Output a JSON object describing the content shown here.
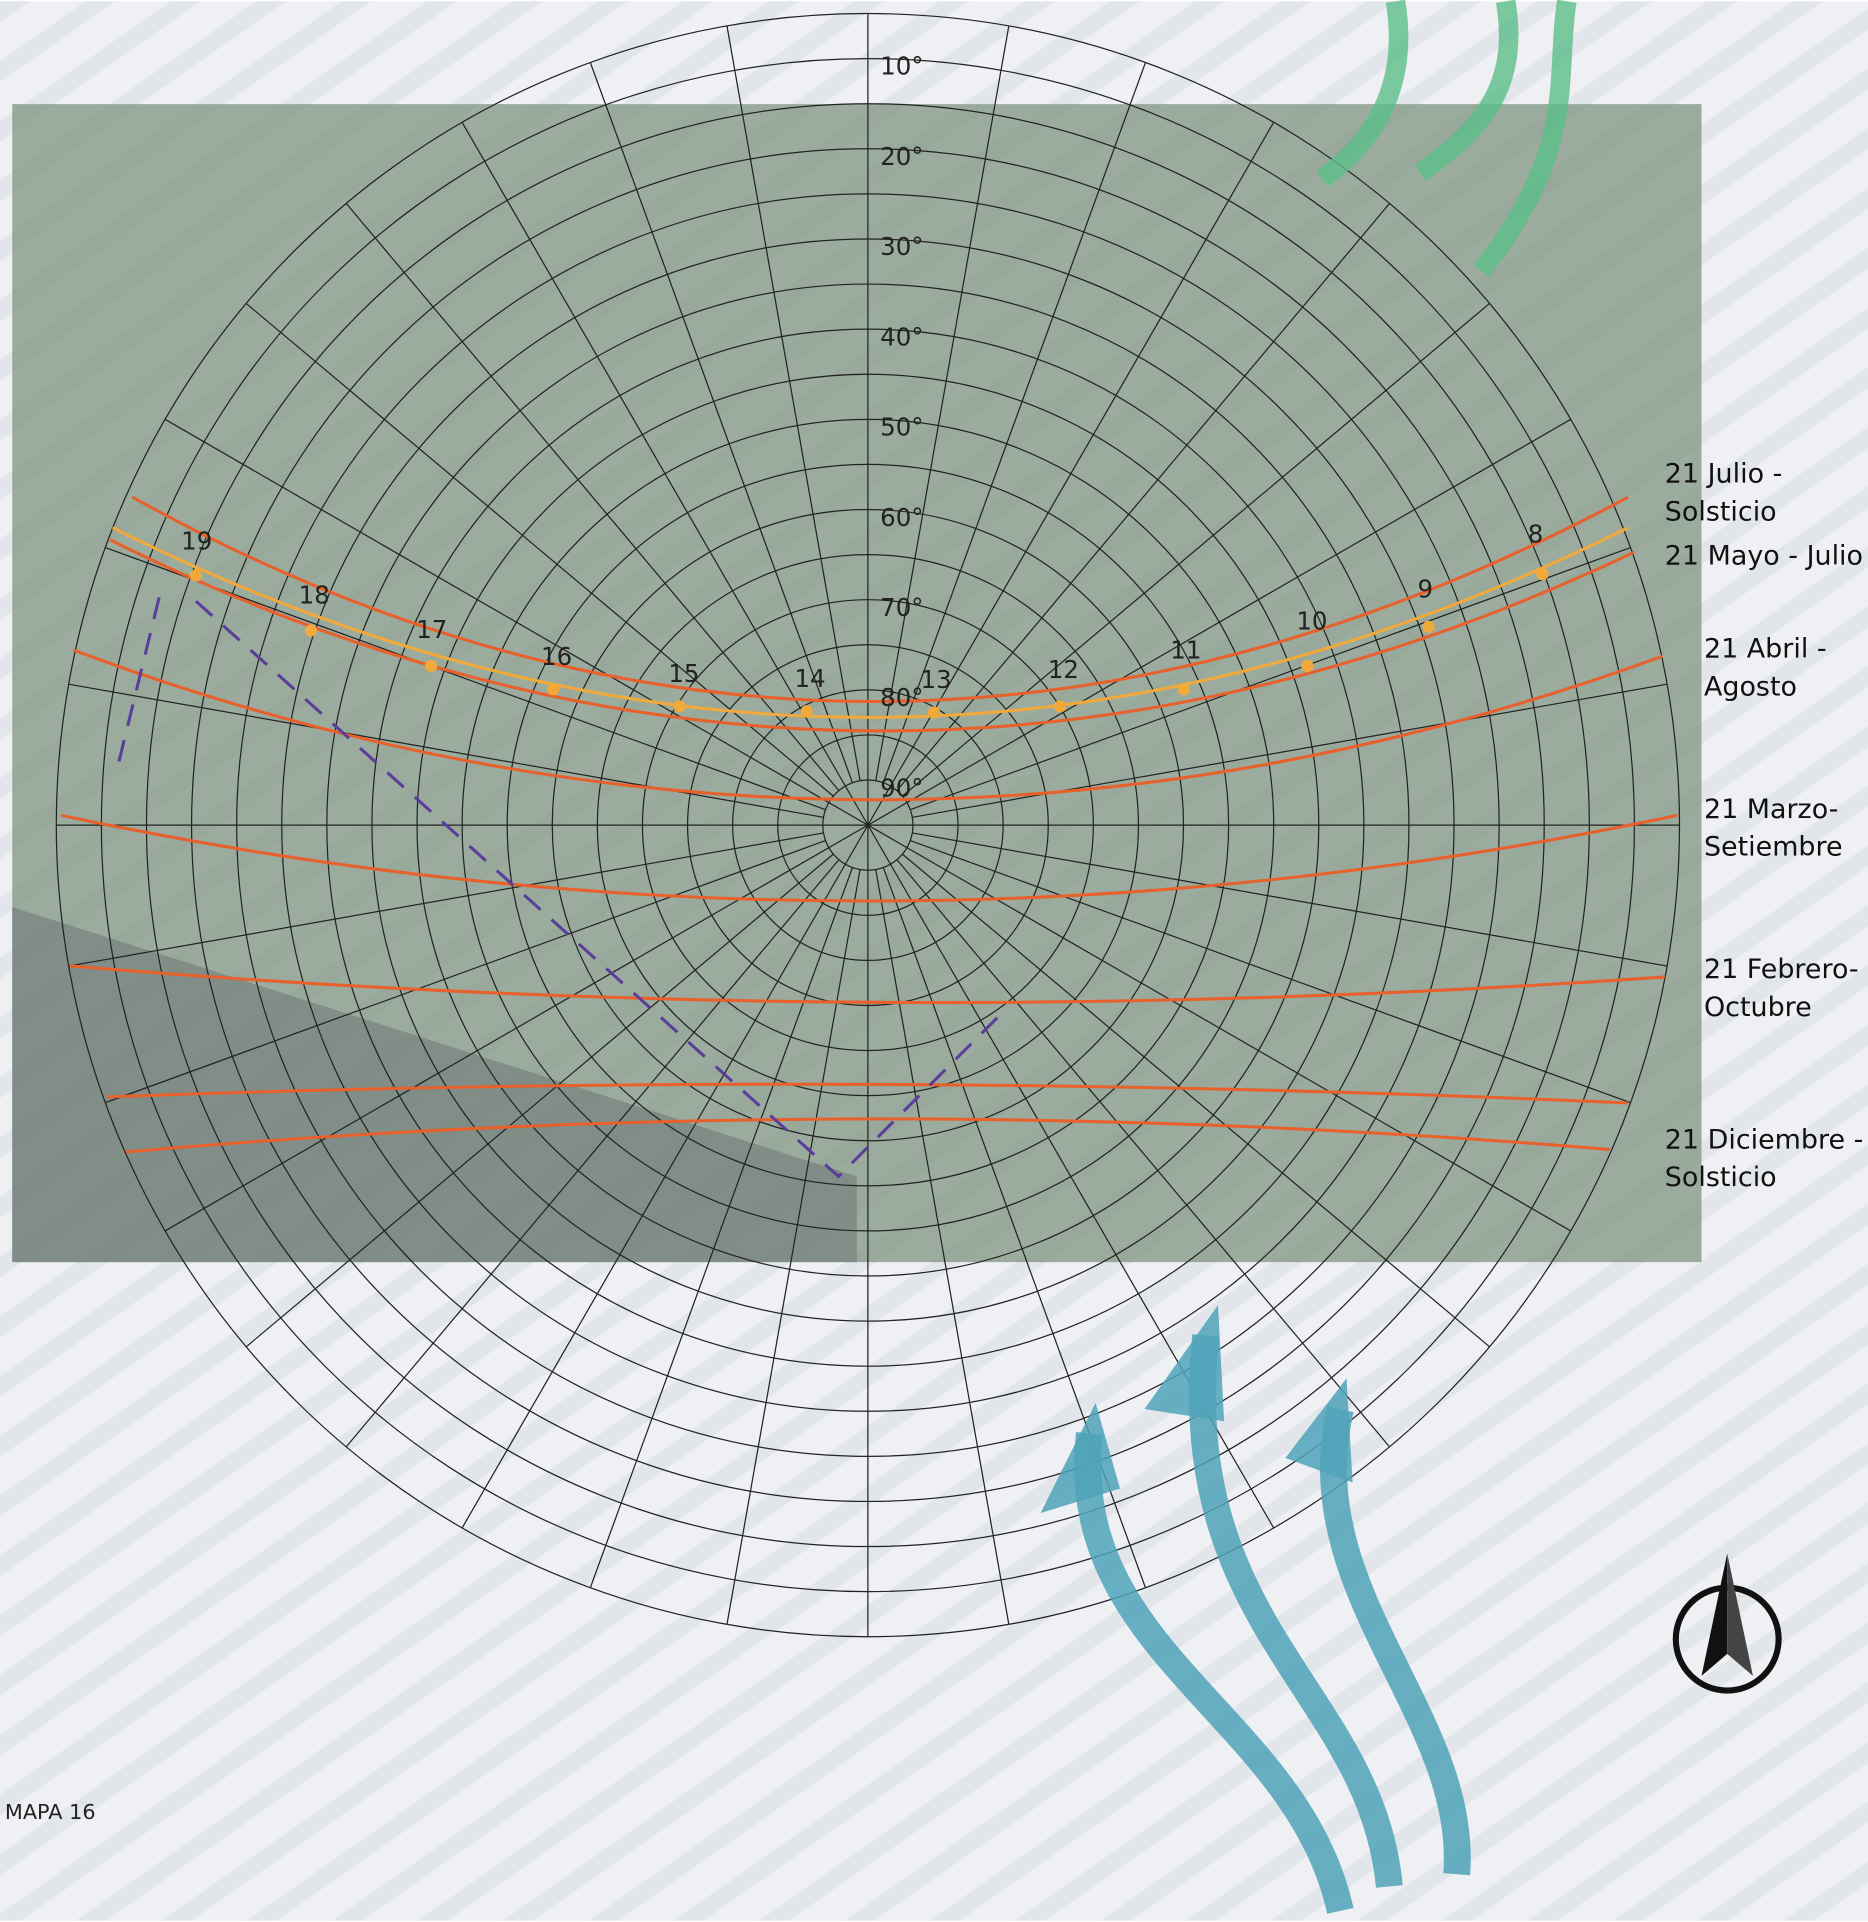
{
  "altitude_labels": [
    "10°",
    "20°",
    "30°",
    "40°",
    "50°",
    "60°",
    "70°",
    "80°",
    "90°"
  ],
  "hour_labels": [
    "19",
    "18",
    "17",
    "16",
    "15",
    "14",
    "13",
    "12",
    "11",
    "10",
    "9",
    "8"
  ],
  "date_labels": [
    [
      "21 Julio -",
      "Solsticio"
    ],
    [
      "21 Mayo - Julio"
    ],
    [
      "21 Abril -",
      "Agosto"
    ],
    [
      "21 Marzo-",
      "Setiembre"
    ],
    [
      "21 Febrero-",
      "Octubre"
    ],
    [
      "21 Diciembre -",
      "Solsticio"
    ]
  ],
  "footer": "MAPA 16"
}
